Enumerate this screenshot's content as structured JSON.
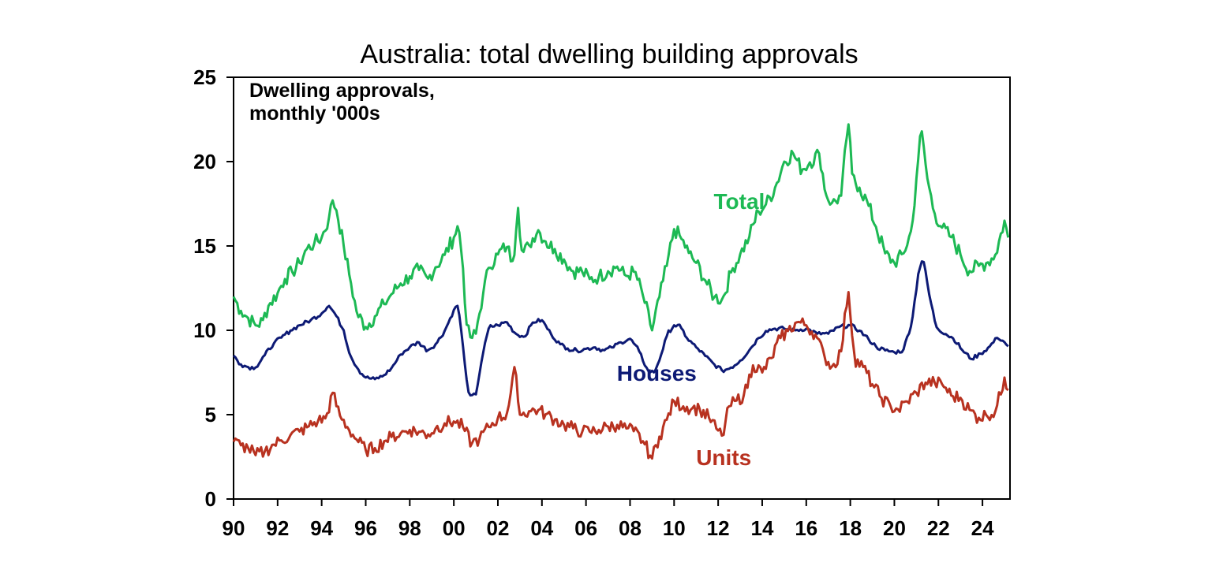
{
  "chart_data": {
    "type": "line",
    "title": "Australia: total dwelling building approvals",
    "annotation": [
      "Dwelling approvals,",
      "monthly '000s"
    ],
    "xlabel": "",
    "ylabel": "",
    "x_range": [
      1990,
      2025.25
    ],
    "ylim": [
      0,
      25
    ],
    "y_ticks": [
      0,
      5,
      10,
      15,
      20,
      25
    ],
    "x_tick_labels": [
      "90",
      "92",
      "94",
      "96",
      "98",
      "00",
      "02",
      "04",
      "06",
      "08",
      "10",
      "12",
      "14",
      "16",
      "18",
      "20",
      "22",
      "24"
    ],
    "x_tick_years": [
      1990,
      1992,
      1994,
      1996,
      1998,
      2000,
      2002,
      2004,
      2006,
      2008,
      2010,
      2012,
      2014,
      2016,
      2018,
      2020,
      2022,
      2024
    ],
    "grid": false,
    "legend": "inline labels",
    "series": [
      {
        "name": "Total",
        "color": "#1db954",
        "label_at": [
          2011.8,
          17.2
        ],
        "points": [
          [
            1990.0,
            12.0
          ],
          [
            1990.3,
            11.2
          ],
          [
            1990.6,
            10.8
          ],
          [
            1991.0,
            10.3
          ],
          [
            1991.3,
            10.5
          ],
          [
            1991.6,
            11.5
          ],
          [
            1992.0,
            12.2
          ],
          [
            1992.3,
            13.0
          ],
          [
            1992.7,
            13.5
          ],
          [
            1993.0,
            14.0
          ],
          [
            1993.3,
            14.8
          ],
          [
            1993.7,
            15.2
          ],
          [
            1994.0,
            15.5
          ],
          [
            1994.3,
            16.5
          ],
          [
            1994.5,
            17.7
          ],
          [
            1994.7,
            17.0
          ],
          [
            1995.0,
            15.0
          ],
          [
            1995.3,
            13.0
          ],
          [
            1995.6,
            11.0
          ],
          [
            1996.0,
            10.2
          ],
          [
            1996.4,
            10.8
          ],
          [
            1996.8,
            11.5
          ],
          [
            1997.2,
            12.2
          ],
          [
            1997.6,
            12.8
          ],
          [
            1998.0,
            13.2
          ],
          [
            1998.4,
            13.6
          ],
          [
            1998.8,
            13.0
          ],
          [
            1999.2,
            13.8
          ],
          [
            1999.6,
            14.5
          ],
          [
            2000.0,
            15.5
          ],
          [
            2000.2,
            16.3
          ],
          [
            2000.4,
            14.0
          ],
          [
            2000.6,
            10.0
          ],
          [
            2000.8,
            9.5
          ],
          [
            2001.0,
            9.8
          ],
          [
            2001.3,
            12.0
          ],
          [
            2001.6,
            13.8
          ],
          [
            2002.0,
            14.5
          ],
          [
            2002.4,
            15.0
          ],
          [
            2002.7,
            14.0
          ],
          [
            2002.9,
            17.5
          ],
          [
            2003.1,
            14.5
          ],
          [
            2003.4,
            15.0
          ],
          [
            2003.8,
            16.0
          ],
          [
            2004.2,
            15.2
          ],
          [
            2004.6,
            14.8
          ],
          [
            2005.0,
            14.2
          ],
          [
            2005.4,
            13.5
          ],
          [
            2005.8,
            13.5
          ],
          [
            2006.2,
            13.0
          ],
          [
            2006.6,
            13.2
          ],
          [
            2007.0,
            13.5
          ],
          [
            2007.4,
            13.8
          ],
          [
            2007.8,
            13.2
          ],
          [
            2008.2,
            13.5
          ],
          [
            2008.6,
            12.0
          ],
          [
            2009.0,
            10.0
          ],
          [
            2009.3,
            11.8
          ],
          [
            2009.7,
            14.0
          ],
          [
            2010.0,
            16.0
          ],
          [
            2010.3,
            15.5
          ],
          [
            2010.7,
            14.5
          ],
          [
            2011.0,
            14.0
          ],
          [
            2011.4,
            13.0
          ],
          [
            2011.8,
            12.0
          ],
          [
            2012.2,
            11.8
          ],
          [
            2012.6,
            13.5
          ],
          [
            2013.0,
            14.5
          ],
          [
            2013.4,
            15.5
          ],
          [
            2013.8,
            17.0
          ],
          [
            2014.2,
            17.5
          ],
          [
            2014.6,
            18.5
          ],
          [
            2015.0,
            20.0
          ],
          [
            2015.4,
            20.5
          ],
          [
            2015.8,
            19.5
          ],
          [
            2016.2,
            20.0
          ],
          [
            2016.6,
            20.5
          ],
          [
            2016.9,
            18.0
          ],
          [
            2017.2,
            17.5
          ],
          [
            2017.6,
            18.0
          ],
          [
            2017.9,
            22.5
          ],
          [
            2018.1,
            19.0
          ],
          [
            2018.4,
            18.5
          ],
          [
            2018.8,
            17.5
          ],
          [
            2019.2,
            16.0
          ],
          [
            2019.6,
            14.5
          ],
          [
            2020.0,
            14.0
          ],
          [
            2020.4,
            14.5
          ],
          [
            2020.8,
            16.0
          ],
          [
            2021.0,
            19.0
          ],
          [
            2021.2,
            22.0
          ],
          [
            2021.5,
            19.0
          ],
          [
            2021.8,
            17.0
          ],
          [
            2022.2,
            16.0
          ],
          [
            2022.6,
            15.5
          ],
          [
            2023.0,
            14.5
          ],
          [
            2023.4,
            13.5
          ],
          [
            2023.8,
            13.8
          ],
          [
            2024.2,
            14.0
          ],
          [
            2024.6,
            14.5
          ],
          [
            2025.0,
            16.5
          ],
          [
            2025.2,
            15.3
          ]
        ]
      },
      {
        "name": "Houses",
        "color": "#0d1a75",
        "label_at": [
          2007.4,
          7.0
        ],
        "points": [
          [
            1990.0,
            8.5
          ],
          [
            1990.3,
            8.0
          ],
          [
            1990.7,
            7.8
          ],
          [
            1991.0,
            7.8
          ],
          [
            1991.4,
            8.5
          ],
          [
            1991.8,
            9.2
          ],
          [
            1992.2,
            9.6
          ],
          [
            1992.6,
            10.0
          ],
          [
            1993.0,
            10.3
          ],
          [
            1993.5,
            10.6
          ],
          [
            1994.0,
            11.0
          ],
          [
            1994.3,
            11.5
          ],
          [
            1994.6,
            11.0
          ],
          [
            1995.0,
            10.0
          ],
          [
            1995.3,
            8.5
          ],
          [
            1995.7,
            7.6
          ],
          [
            1996.0,
            7.2
          ],
          [
            1996.4,
            7.1
          ],
          [
            1996.8,
            7.3
          ],
          [
            1997.2,
            7.8
          ],
          [
            1997.6,
            8.6
          ],
          [
            1998.0,
            9.0
          ],
          [
            1998.4,
            9.3
          ],
          [
            1998.8,
            8.8
          ],
          [
            1999.2,
            9.2
          ],
          [
            1999.6,
            10.0
          ],
          [
            2000.0,
            11.2
          ],
          [
            2000.2,
            11.5
          ],
          [
            2000.5,
            8.0
          ],
          [
            2000.7,
            6.0
          ],
          [
            2001.0,
            6.2
          ],
          [
            2001.3,
            8.5
          ],
          [
            2001.6,
            10.2
          ],
          [
            2002.0,
            10.3
          ],
          [
            2002.4,
            10.5
          ],
          [
            2002.8,
            9.8
          ],
          [
            2003.2,
            9.6
          ],
          [
            2003.6,
            10.5
          ],
          [
            2004.0,
            10.6
          ],
          [
            2004.4,
            9.8
          ],
          [
            2004.8,
            9.2
          ],
          [
            2005.2,
            8.9
          ],
          [
            2005.6,
            8.8
          ],
          [
            2006.0,
            8.9
          ],
          [
            2006.4,
            9.0
          ],
          [
            2006.8,
            8.8
          ],
          [
            2007.2,
            9.0
          ],
          [
            2007.6,
            9.3
          ],
          [
            2008.0,
            9.5
          ],
          [
            2008.4,
            8.8
          ],
          [
            2008.8,
            7.6
          ],
          [
            2009.1,
            7.5
          ],
          [
            2009.4,
            8.5
          ],
          [
            2009.7,
            9.8
          ],
          [
            2010.0,
            10.3
          ],
          [
            2010.3,
            10.2
          ],
          [
            2010.6,
            9.5
          ],
          [
            2011.0,
            9.0
          ],
          [
            2011.4,
            8.5
          ],
          [
            2011.8,
            8.0
          ],
          [
            2012.2,
            7.6
          ],
          [
            2012.6,
            7.8
          ],
          [
            2013.0,
            8.2
          ],
          [
            2013.4,
            8.8
          ],
          [
            2013.8,
            9.5
          ],
          [
            2014.2,
            10.0
          ],
          [
            2014.6,
            10.1
          ],
          [
            2015.0,
            10.1
          ],
          [
            2015.5,
            10.0
          ],
          [
            2016.0,
            10.1
          ],
          [
            2016.5,
            9.8
          ],
          [
            2017.0,
            9.8
          ],
          [
            2017.5,
            10.2
          ],
          [
            2018.0,
            10.3
          ],
          [
            2018.4,
            10.0
          ],
          [
            2018.8,
            9.5
          ],
          [
            2019.2,
            9.0
          ],
          [
            2019.6,
            8.8
          ],
          [
            2020.0,
            8.7
          ],
          [
            2020.4,
            8.8
          ],
          [
            2020.8,
            10.5
          ],
          [
            2021.1,
            13.5
          ],
          [
            2021.3,
            14.3
          ],
          [
            2021.6,
            12.0
          ],
          [
            2021.9,
            10.2
          ],
          [
            2022.3,
            9.8
          ],
          [
            2022.7,
            9.5
          ],
          [
            2023.1,
            8.8
          ],
          [
            2023.5,
            8.3
          ],
          [
            2023.9,
            8.6
          ],
          [
            2024.3,
            9.0
          ],
          [
            2024.7,
            9.6
          ],
          [
            2025.0,
            9.3
          ],
          [
            2025.2,
            9.0
          ]
        ]
      },
      {
        "name": "Units",
        "color": "#b83220",
        "label_at": [
          2011.0,
          2.0
        ],
        "points": [
          [
            1990.0,
            3.4
          ],
          [
            1990.3,
            3.2
          ],
          [
            1990.7,
            3.0
          ],
          [
            1991.0,
            2.6
          ],
          [
            1991.4,
            2.8
          ],
          [
            1991.8,
            3.2
          ],
          [
            1992.2,
            3.5
          ],
          [
            1992.6,
            3.8
          ],
          [
            1993.0,
            4.0
          ],
          [
            1993.4,
            4.3
          ],
          [
            1993.8,
            4.6
          ],
          [
            1994.2,
            4.8
          ],
          [
            1994.5,
            6.3
          ],
          [
            1994.8,
            5.0
          ],
          [
            1995.2,
            4.2
          ],
          [
            1995.6,
            3.5
          ],
          [
            1996.0,
            2.9
          ],
          [
            1996.4,
            3.0
          ],
          [
            1996.8,
            3.4
          ],
          [
            1997.2,
            3.7
          ],
          [
            1997.6,
            3.9
          ],
          [
            1998.0,
            4.1
          ],
          [
            1998.4,
            4.0
          ],
          [
            1998.8,
            3.8
          ],
          [
            1999.2,
            4.2
          ],
          [
            1999.6,
            4.5
          ],
          [
            2000.0,
            4.6
          ],
          [
            2000.4,
            4.3
          ],
          [
            2000.8,
            3.3
          ],
          [
            2001.2,
            3.6
          ],
          [
            2001.6,
            4.3
          ],
          [
            2002.0,
            4.8
          ],
          [
            2002.4,
            5.0
          ],
          [
            2002.8,
            7.8
          ],
          [
            2003.0,
            5.0
          ],
          [
            2003.4,
            5.2
          ],
          [
            2003.8,
            5.3
          ],
          [
            2004.2,
            5.0
          ],
          [
            2004.6,
            4.7
          ],
          [
            2005.0,
            4.4
          ],
          [
            2005.4,
            4.2
          ],
          [
            2005.8,
            4.0
          ],
          [
            2006.2,
            4.0
          ],
          [
            2006.6,
            4.1
          ],
          [
            2007.0,
            4.3
          ],
          [
            2007.4,
            4.4
          ],
          [
            2007.8,
            4.2
          ],
          [
            2008.2,
            4.0
          ],
          [
            2008.6,
            3.4
          ],
          [
            2009.0,
            2.4
          ],
          [
            2009.3,
            3.6
          ],
          [
            2009.7,
            4.8
          ],
          [
            2010.0,
            5.8
          ],
          [
            2010.4,
            5.5
          ],
          [
            2010.8,
            5.4
          ],
          [
            2011.2,
            5.3
          ],
          [
            2011.6,
            4.8
          ],
          [
            2011.9,
            4.2
          ],
          [
            2012.2,
            3.7
          ],
          [
            2012.5,
            5.5
          ],
          [
            2012.8,
            5.8
          ],
          [
            2013.2,
            6.2
          ],
          [
            2013.6,
            8.0
          ],
          [
            2014.0,
            7.5
          ],
          [
            2014.4,
            8.3
          ],
          [
            2014.8,
            9.5
          ],
          [
            2015.2,
            10.0
          ],
          [
            2015.6,
            10.5
          ],
          [
            2016.0,
            10.3
          ],
          [
            2016.4,
            9.8
          ],
          [
            2016.8,
            8.5
          ],
          [
            2017.2,
            7.8
          ],
          [
            2017.6,
            8.8
          ],
          [
            2017.9,
            12.5
          ],
          [
            2018.2,
            8.3
          ],
          [
            2018.6,
            7.8
          ],
          [
            2019.0,
            6.8
          ],
          [
            2019.4,
            6.0
          ],
          [
            2019.8,
            5.5
          ],
          [
            2020.2,
            5.3
          ],
          [
            2020.6,
            5.8
          ],
          [
            2021.0,
            6.3
          ],
          [
            2021.4,
            6.9
          ],
          [
            2021.8,
            6.9
          ],
          [
            2022.2,
            6.8
          ],
          [
            2022.6,
            6.1
          ],
          [
            2023.0,
            6.0
          ],
          [
            2023.4,
            5.3
          ],
          [
            2023.8,
            4.8
          ],
          [
            2024.2,
            5.0
          ],
          [
            2024.6,
            5.2
          ],
          [
            2025.0,
            7.2
          ],
          [
            2025.2,
            6.3
          ]
        ]
      }
    ]
  }
}
